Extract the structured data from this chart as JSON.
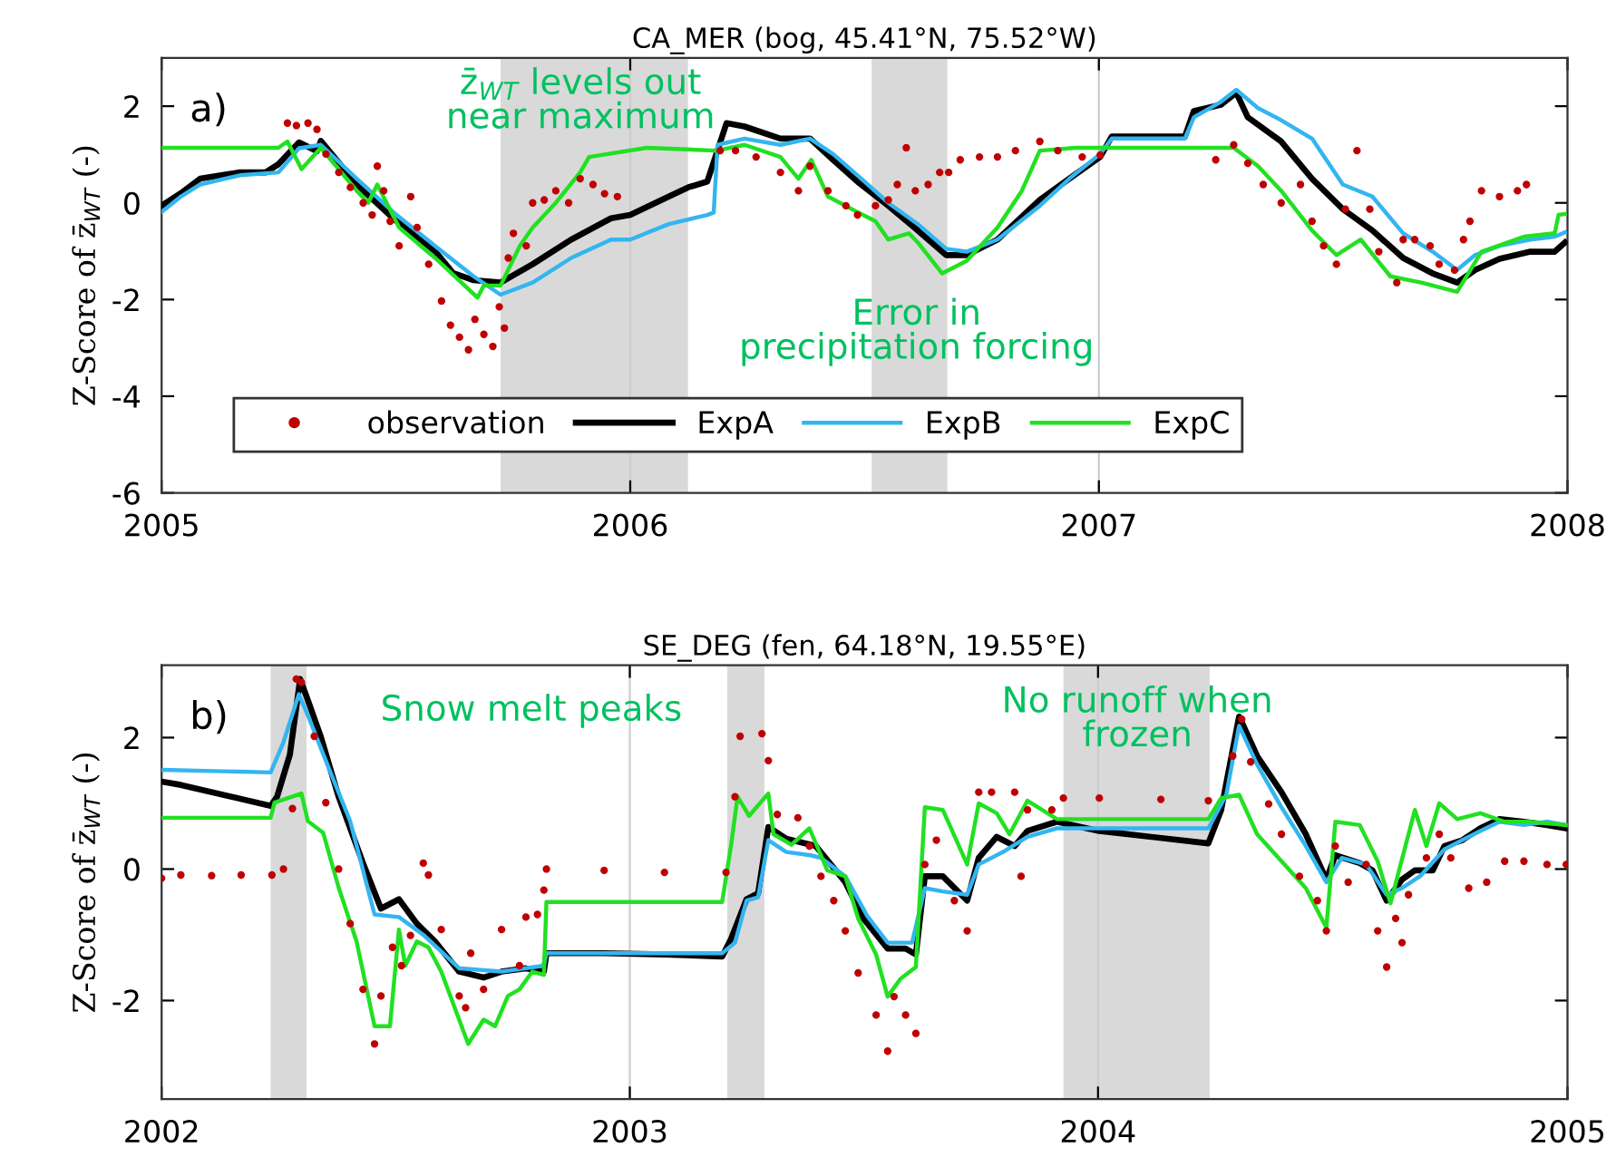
{
  "chart_data": [
    {
      "type": "line",
      "title": "CA_MER (bog, 45.41°N, 75.52°W)",
      "ylabel": "Z-Score of z̄$_{WT}$ (-)",
      "xlim": [
        "2005-01-01",
        "2008-01-01"
      ],
      "xticks": [
        {
          "value": "2005-01-01",
          "label": "2005"
        },
        {
          "value": "2006-01-01",
          "label": "2006"
        },
        {
          "value": "2007-01-01",
          "label": "2007"
        },
        {
          "value": "2008-01-01",
          "label": "2008"
        }
      ],
      "ylim": [
        -6,
        3
      ],
      "yticks": [
        -6,
        -4,
        -2,
        0,
        2
      ],
      "grid": "x",
      "legend": "bottom",
      "bands": [
        {
          "axis": "x",
          "from": "2005-09-22",
          "to": "2006-02-15",
          "color": "#d9d9d9"
        },
        {
          "axis": "x",
          "from": "2006-07-08",
          "to": "2006-09-05",
          "color": "#d9d9d9"
        }
      ],
      "annotations": [
        "a)",
        "z̄$_{WT}$ levels out\nnear maximum",
        "Error in\nprecipitation forcing"
      ],
      "series": [
        {
          "name": "observation",
          "type": "scatter",
          "marker": "circle",
          "color": "#c00000",
          "x": [
            "2005-04-09",
            "2005-04-16",
            "2005-04-25",
            "2005-05-02",
            "2005-05-09",
            "2005-05-19",
            "2005-05-28",
            "2005-06-07",
            "2005-06-14",
            "2005-06-18",
            "2005-06-23",
            "2005-06-28",
            "2005-07-05",
            "2005-07-14",
            "2005-07-19",
            "2005-07-28",
            "2005-08-07",
            "2005-08-14",
            "2005-08-21",
            "2005-08-28",
            "2005-09-02",
            "2005-09-09",
            "2005-09-16",
            "2005-09-21",
            "2005-09-25",
            "2005-09-28",
            "2005-10-02",
            "2005-10-12",
            "2005-10-17",
            "2005-10-26",
            "2005-11-04",
            "2005-11-14",
            "2005-11-23",
            "2005-12-03",
            "2005-12-12",
            "2005-12-22",
            "2006-03-12",
            "2006-03-24",
            "2006-04-09",
            "2006-04-28",
            "2006-05-12",
            "2006-05-21",
            "2006-06-04",
            "2006-06-18",
            "2006-06-27",
            "2006-07-11",
            "2006-07-21",
            "2006-07-28",
            "2006-08-04",
            "2006-08-11",
            "2006-08-21",
            "2006-08-30",
            "2006-09-06",
            "2006-09-15",
            "2006-09-30",
            "2006-10-14",
            "2006-10-28",
            "2006-11-16",
            "2006-11-30",
            "2006-12-19",
            "2007-01-02",
            "2007-04-02",
            "2007-04-16",
            "2007-04-27",
            "2007-05-09",
            "2007-05-23",
            "2007-06-07",
            "2007-06-16",
            "2007-06-25",
            "2007-07-05",
            "2007-07-12",
            "2007-07-21",
            "2007-07-31",
            "2007-08-07",
            "2007-08-21",
            "2007-08-26",
            "2007-09-04",
            "2007-09-16",
            "2007-09-23",
            "2007-10-05",
            "2007-10-12",
            "2007-10-17",
            "2007-10-26",
            "2007-11-09",
            "2007-11-23",
            "2007-11-30"
          ],
          "values": [
            1.65,
            1.6,
            1.65,
            1.52,
            1.01,
            0.63,
            0.32,
            0,
            -0.25,
            0.76,
            0.25,
            -0.38,
            -0.89,
            0.13,
            -0.51,
            -1.27,
            -2.03,
            -2.53,
            -2.78,
            -3.04,
            -2.41,
            -2.72,
            -2.97,
            -2.15,
            -2.59,
            -1.14,
            -0.63,
            -0.89,
            0,
            0.06,
            0.25,
            0,
            0.5,
            0.38,
            0.19,
            0.13,
            1.08,
            1.08,
            0.95,
            0.63,
            0.25,
            0.76,
            0.25,
            -0.06,
            -0.25,
            -0.06,
            0.06,
            0.38,
            1.14,
            0.25,
            0.38,
            0.63,
            0.63,
            0.89,
            0.95,
            0.95,
            1.08,
            1.27,
            1.08,
            0.95,
            0.99,
            0.89,
            1.2,
            0.82,
            0.38,
            0,
            0.38,
            -0.38,
            -0.89,
            -1.27,
            -0.13,
            1.08,
            -0.13,
            -1.01,
            -1.65,
            -0.76,
            -0.76,
            -0.89,
            -1.27,
            -1.39,
            -0.76,
            -0.38,
            0.25,
            0.13,
            0.25,
            0.38
          ]
        },
        {
          "name": "ExpA",
          "type": "line",
          "color": "#000000",
          "x": [
            "2005-01-01",
            "2005-01-16",
            "2005-01-31",
            "2005-03-03",
            "2005-03-23",
            "2005-04-02",
            "2005-04-18",
            "2005-05-02",
            "2005-05-05",
            "2005-06-02",
            "2005-07-03",
            "2005-08-02",
            "2005-08-16",
            "2005-09-01",
            "2005-09-22",
            "2005-10-17",
            "2005-11-16",
            "2005-12-17",
            "2006-01-01",
            "2006-01-31",
            "2006-02-15",
            "2006-03-02",
            "2006-03-17",
            "2006-03-31",
            "2006-04-28",
            "2006-05-21",
            "2006-06-08",
            "2006-06-27",
            "2006-07-21",
            "2006-08-13",
            "2006-09-04",
            "2006-09-20",
            "2006-10-14",
            "2006-11-16",
            "2006-12-09",
            "2007-01-02",
            "2007-01-11",
            "2007-03-09",
            "2007-03-16",
            "2007-04-06",
            "2007-04-18",
            "2007-04-27",
            "2007-05-23",
            "2007-06-16",
            "2007-07-10",
            "2007-08-02",
            "2007-08-26",
            "2007-09-18",
            "2007-10-07",
            "2007-10-21",
            "2007-11-09",
            "2007-12-03",
            "2007-12-22",
            "2007-12-30"
          ],
          "values": [
            -0.06,
            0.2,
            0.5,
            0.63,
            0.63,
            0.8,
            1.25,
            1.07,
            1.28,
            0.38,
            -0.38,
            -1.0,
            -1.45,
            -1.6,
            -1.65,
            -1.27,
            -0.76,
            -0.32,
            -0.25,
            0.13,
            0.32,
            0.44,
            1.65,
            1.58,
            1.33,
            1.33,
            0.89,
            0.44,
            -0.06,
            -0.57,
            -1.08,
            -1.08,
            -0.76,
            0.06,
            0.5,
            0.95,
            1.37,
            1.37,
            1.9,
            2.03,
            2.28,
            1.77,
            1.27,
            0.5,
            -0.13,
            -0.57,
            -1.14,
            -1.46,
            -1.65,
            -1.39,
            -1.16,
            -1.01,
            -1.01,
            -0.82
          ]
        },
        {
          "name": "ExpB",
          "type": "line",
          "color": "#33b5f0",
          "x": [
            "2005-01-01",
            "2005-01-16",
            "2005-01-31",
            "2005-03-03",
            "2005-04-02",
            "2005-04-18",
            "2005-05-05",
            "2005-06-02",
            "2005-07-03",
            "2005-08-02",
            "2005-09-01",
            "2005-09-22",
            "2005-10-17",
            "2005-11-16",
            "2005-12-17",
            "2006-01-01",
            "2006-01-31",
            "2006-03-02",
            "2006-03-07",
            "2006-03-10",
            "2006-03-31",
            "2006-04-28",
            "2006-05-21",
            "2006-06-08",
            "2006-06-27",
            "2006-07-21",
            "2006-08-13",
            "2006-09-04",
            "2006-09-20",
            "2006-10-14",
            "2006-11-16",
            "2006-12-09",
            "2007-01-02",
            "2007-01-11",
            "2007-03-09",
            "2007-03-16",
            "2007-04-06",
            "2007-04-18",
            "2007-05-05",
            "2007-05-23",
            "2007-06-16",
            "2007-07-10",
            "2007-08-02",
            "2007-08-26",
            "2007-09-18",
            "2007-10-07",
            "2007-10-21",
            "2007-11-09",
            "2007-12-03",
            "2007-12-22",
            "2007-12-30"
          ],
          "values": [
            -0.19,
            0.13,
            0.38,
            0.57,
            0.63,
            1.13,
            1.2,
            0.5,
            -0.25,
            -0.89,
            -1.52,
            -1.9,
            -1.65,
            -1.14,
            -0.76,
            -0.76,
            -0.44,
            -0.25,
            -0.2,
            1.2,
            1.33,
            1.2,
            1.33,
            1.01,
            0.57,
            0,
            -0.44,
            -0.95,
            -1.01,
            -0.76,
            -0.06,
            0.5,
            1.01,
            1.33,
            1.33,
            1.77,
            2.09,
            2.34,
            1.96,
            1.71,
            1.33,
            0.38,
            0.13,
            -0.63,
            -1.01,
            -1.39,
            -1.08,
            -0.89,
            -0.76,
            -0.7,
            -0.61
          ]
        },
        {
          "name": "ExpC",
          "type": "line",
          "color": "#22e022",
          "x": [
            "2005-01-01",
            "2005-03-04",
            "2005-04-02",
            "2005-04-09",
            "2005-04-20",
            "2005-05-05",
            "2005-06-02",
            "2005-06-11",
            "2005-06-18",
            "2005-07-05",
            "2005-08-02",
            "2005-09-04",
            "2005-09-09",
            "2005-09-22",
            "2005-10-07",
            "2005-10-17",
            "2005-11-04",
            "2005-11-23",
            "2005-11-30",
            "2006-01-14",
            "2006-03-09",
            "2006-03-31",
            "2006-04-28",
            "2006-05-12",
            "2006-05-22",
            "2006-06-04",
            "2006-06-27",
            "2006-07-11",
            "2006-07-21",
            "2006-08-06",
            "2006-08-13",
            "2006-09-01",
            "2006-09-20",
            "2006-10-14",
            "2006-11-02",
            "2006-11-16",
            "2006-12-14",
            "2007-01-02",
            "2007-03-09",
            "2007-04-16",
            "2007-05-05",
            "2007-05-23",
            "2007-06-16",
            "2007-07-05",
            "2007-07-24",
            "2007-08-16",
            "2007-09-09",
            "2007-10-07",
            "2007-10-26",
            "2007-11-28",
            "2007-12-22",
            "2007-12-25",
            "2007-12-30"
          ],
          "values": [
            1.14,
            1.14,
            1.14,
            1.27,
            0.7,
            1.14,
            0.25,
            0,
            0.38,
            -0.51,
            -1.14,
            -1.96,
            -1.71,
            -1.71,
            -0.89,
            -0.51,
            0,
            0.63,
            0.95,
            1.14,
            1.08,
            1.2,
            0.95,
            0.5,
            0.89,
            0.13,
            -0.19,
            -0.38,
            -0.76,
            -0.63,
            -0.82,
            -1.46,
            -1.2,
            -0.51,
            0.25,
            1.08,
            1.14,
            1.14,
            1.14,
            1.14,
            0.76,
            0.25,
            -0.57,
            -1.08,
            -0.76,
            -1.52,
            -1.65,
            -1.84,
            -1.01,
            -0.7,
            -0.63,
            -0.25,
            -0.23
          ]
        }
      ]
    },
    {
      "type": "line",
      "title": "SE_DEG (fen, 64.18°N, 19.55°E)",
      "ylabel": "Z-Score of z̄$_{WT}$ (-)",
      "xlim": [
        "2002-01-01",
        "2005-01-01"
      ],
      "xticks": [
        {
          "value": "2002-01-01",
          "label": "2002"
        },
        {
          "value": "2003-01-01",
          "label": "2003"
        },
        {
          "value": "2004-01-01",
          "label": "2004"
        },
        {
          "value": "2005-01-01",
          "label": "2005"
        }
      ],
      "ylim": [
        -3.5,
        3.1
      ],
      "yticks": [
        -2,
        0,
        2
      ],
      "grid": "x",
      "bands": [
        {
          "axis": "x",
          "from": "2002-03-27",
          "to": "2002-04-24",
          "color": "#d9d9d9"
        },
        {
          "axis": "x",
          "from": "2003-03-18",
          "to": "2003-04-16",
          "color": "#d9d9d9"
        },
        {
          "axis": "x",
          "from": "2003-12-05",
          "to": "2004-03-28",
          "color": "#d9d9d9"
        }
      ],
      "annotations": [
        "b)",
        "Snow melt peaks",
        "No runoff when\nfrozen"
      ],
      "series": [
        {
          "type": "scatter",
          "marker": "circle",
          "color": "#c00000",
          "x": [
            "2002-01-01",
            "2002-01-16",
            "2002-02-09",
            "2002-03-04",
            "2002-03-28",
            "2002-04-06",
            "2002-04-13",
            "2002-04-16",
            "2002-04-20",
            "2002-04-30",
            "2002-05-09",
            "2002-05-19",
            "2002-05-28",
            "2002-06-07",
            "2002-06-16",
            "2002-06-21",
            "2002-06-30",
            "2002-07-07",
            "2002-07-14",
            "2002-07-24",
            "2002-07-28",
            "2002-08-07",
            "2002-08-21",
            "2002-08-26",
            "2002-08-30",
            "2002-09-09",
            "2002-09-23",
            "2002-10-07",
            "2002-10-12",
            "2002-10-21",
            "2002-10-26",
            "2002-10-28",
            "2002-12-12",
            "2003-01-28",
            "2003-03-17",
            "2003-03-24",
            "2003-03-28",
            "2003-04-14",
            "2003-04-19",
            "2003-04-26",
            "2003-05-12",
            "2003-05-21",
            "2003-05-30",
            "2003-06-09",
            "2003-06-18",
            "2003-06-28",
            "2003-07-12",
            "2003-07-21",
            "2003-07-26",
            "2003-08-04",
            "2003-08-12",
            "2003-08-19",
            "2003-08-28",
            "2003-09-11",
            "2003-09-21",
            "2003-09-30",
            "2003-10-10",
            "2003-10-28",
            "2003-11-02",
            "2003-11-07",
            "2003-11-26",
            "2003-12-05",
            "2004-01-02",
            "2004-02-19",
            "2004-03-27",
            "2004-04-15",
            "2004-04-22",
            "2004-04-29",
            "2004-05-13",
            "2004-05-23",
            "2004-06-06",
            "2004-06-20",
            "2004-06-27",
            "2004-07-04",
            "2004-07-14",
            "2004-07-28",
            "2004-08-06",
            "2004-08-13",
            "2004-08-20",
            "2004-08-25",
            "2004-08-30",
            "2004-09-13",
            "2004-09-23",
            "2004-10-02",
            "2004-10-16",
            "2004-10-30",
            "2004-11-13",
            "2004-11-28",
            "2004-12-16",
            "2004-12-31"
          ],
          "values": [
            -0.14,
            -0.09,
            -0.1,
            -0.09,
            -0.09,
            0,
            0.92,
            2.89,
            2.84,
            2.02,
            1.01,
            0,
            -0.83,
            -1.83,
            -2.66,
            -1.93,
            -1.19,
            -1.47,
            -1.01,
            0.09,
            -0.09,
            -0.92,
            -1.93,
            -2.11,
            -1.28,
            -1.83,
            -0.92,
            -1.47,
            -0.73,
            -0.69,
            -0.32,
            0,
            -0.02,
            -0.05,
            -0.05,
            1.1,
            2.02,
            2.06,
            1.65,
            0.83,
            0.78,
            0.35,
            -0.11,
            -0.48,
            -0.94,
            -1.58,
            -2.22,
            -2.77,
            -1.94,
            -2.22,
            -2.5,
            0.07,
            0.44,
            -0.48,
            -0.94,
            1.17,
            1.17,
            1.17,
            -0.11,
            0.9,
            0.9,
            1.08,
            1.08,
            1.06,
            1.04,
            1.72,
            2.28,
            1.63,
            0.99,
            0.53,
            -0.11,
            -0.48,
            -0.94,
            0.35,
            -0.2,
            0.07,
            -0.94,
            -1.49,
            -0.75,
            -1.12,
            -0.39,
            0.17,
            0.53,
            0.17,
            -0.29,
            -0.2,
            0.12,
            0.12,
            0.07,
            0.07
          ]
        },
        {
          "type": "line",
          "color": "#000000",
          "x": [
            "2002-01-01",
            "2002-01-16",
            "2002-03-27",
            "2002-04-01",
            "2002-04-11",
            "2002-04-19",
            "2002-04-25",
            "2002-05-05",
            "2002-05-19",
            "2002-06-07",
            "2002-06-21",
            "2002-07-05",
            "2002-07-19",
            "2002-08-02",
            "2002-08-21",
            "2002-09-09",
            "2002-09-23",
            "2002-10-12",
            "2002-10-26",
            "2002-10-28",
            "2002-12-12",
            "2003-01-28",
            "2003-03-14",
            "2003-03-21",
            "2003-04-02",
            "2003-04-11",
            "2003-04-19",
            "2003-05-03",
            "2003-05-26",
            "2003-06-18",
            "2003-07-02",
            "2003-07-21",
            "2003-08-04",
            "2003-08-12",
            "2003-08-19",
            "2003-09-02",
            "2003-09-21",
            "2003-09-30",
            "2003-10-14",
            "2003-10-28",
            "2003-11-07",
            "2003-11-30",
            "2004-01-02",
            "2004-03-27",
            "2004-04-06",
            "2004-04-20",
            "2004-05-04",
            "2004-05-23",
            "2004-06-11",
            "2004-06-27",
            "2004-07-04",
            "2004-07-23",
            "2004-08-02",
            "2004-08-13",
            "2004-08-25",
            "2004-09-04",
            "2004-09-18",
            "2004-09-27",
            "2004-10-11",
            "2004-10-25",
            "2004-11-09",
            "2004-11-28",
            "2004-12-16",
            "2004-12-31"
          ],
          "values": [
            1.33,
            1.28,
            0.96,
            1.1,
            1.74,
            2.89,
            2.57,
            2.02,
            1.1,
            0.09,
            -0.6,
            -0.46,
            -0.83,
            -1.1,
            -1.56,
            -1.65,
            -1.56,
            -1.51,
            -1.56,
            -1.28,
            -1.28,
            -1.3,
            -1.33,
            -1.06,
            -0.46,
            -0.37,
            0.64,
            0.46,
            0.35,
            -0.2,
            -0.75,
            -1.21,
            -1.21,
            -1.3,
            -0.11,
            -0.11,
            -0.48,
            0.17,
            0.49,
            0.35,
            0.58,
            0.72,
            0.58,
            0.39,
            0.9,
            2.32,
            1.72,
            1.17,
            0.53,
            -0.16,
            0.21,
            0.09,
            -0.02,
            -0.48,
            -0.16,
            -0.02,
            -0.02,
            0.35,
            0.44,
            0.62,
            0.76,
            0.72,
            0.67,
            0.62
          ]
        },
        {
          "type": "line",
          "color": "#33b5f0",
          "x": [
            "2002-01-01",
            "2002-03-27",
            "2002-04-06",
            "2002-04-18",
            "2002-04-25",
            "2002-05-09",
            "2002-05-28",
            "2002-06-16",
            "2002-07-05",
            "2002-07-24",
            "2002-08-21",
            "2002-09-23",
            "2002-10-26",
            "2002-10-28",
            "2003-03-14",
            "2003-03-24",
            "2003-04-02",
            "2003-04-11",
            "2003-04-19",
            "2003-05-03",
            "2003-05-22",
            "2003-05-30",
            "2003-06-18",
            "2003-07-05",
            "2003-07-21",
            "2003-08-09",
            "2003-08-19",
            "2003-09-02",
            "2003-09-21",
            "2003-09-30",
            "2003-10-19",
            "2003-11-07",
            "2003-11-30",
            "2004-01-02",
            "2004-03-27",
            "2004-04-10",
            "2004-04-20",
            "2004-05-04",
            "2004-05-23",
            "2004-06-11",
            "2004-06-27",
            "2004-07-09",
            "2004-07-28",
            "2004-08-13",
            "2004-08-25",
            "2004-09-08",
            "2004-09-27",
            "2004-10-11",
            "2004-10-25",
            "2004-11-09",
            "2004-11-28",
            "2004-12-16",
            "2004-12-31"
          ],
          "values": [
            1.51,
            1.47,
            1.93,
            2.66,
            2.34,
            1.65,
            0.73,
            -0.69,
            -0.73,
            -1.0,
            -1.51,
            -1.56,
            -1.47,
            -1.28,
            -1.28,
            -1.12,
            -0.48,
            -0.43,
            0.44,
            0.26,
            0.21,
            0.17,
            -0.11,
            -0.71,
            -1.12,
            -1.12,
            -0.29,
            -0.34,
            -0.39,
            0.07,
            0.26,
            0.49,
            0.62,
            0.62,
            0.62,
            1.13,
            2.18,
            1.59,
            0.94,
            0.35,
            -0.2,
            0.17,
            0.07,
            -0.39,
            -0.29,
            -0.11,
            0.3,
            0.44,
            0.58,
            0.72,
            0.67,
            0.72,
            0.67
          ]
        },
        {
          "type": "line",
          "color": "#22e022",
          "x": [
            "2002-01-01",
            "2002-03-27",
            "2002-03-30",
            "2002-04-20",
            "2002-04-25",
            "2002-05-07",
            "2002-05-19",
            "2002-06-02",
            "2002-06-16",
            "2002-06-28",
            "2002-07-05",
            "2002-07-10",
            "2002-07-19",
            "2002-07-28",
            "2002-08-07",
            "2002-08-28",
            "2002-09-09",
            "2002-09-18",
            "2002-09-28",
            "2002-10-07",
            "2002-10-17",
            "2002-10-26",
            "2002-10-28",
            "2003-03-14",
            "2003-03-21",
            "2003-03-26",
            "2003-04-04",
            "2003-04-19",
            "2003-04-23",
            "2003-05-07",
            "2003-05-21",
            "2003-06-04",
            "2003-06-18",
            "2003-06-28",
            "2003-07-12",
            "2003-07-21",
            "2003-07-31",
            "2003-08-12",
            "2003-08-19",
            "2003-09-02",
            "2003-09-21",
            "2003-09-30",
            "2003-10-14",
            "2003-10-24",
            "2003-11-07",
            "2003-11-30",
            "2004-03-27",
            "2004-04-06",
            "2004-04-20",
            "2004-05-04",
            "2004-05-23",
            "2004-06-11",
            "2004-06-27",
            "2004-07-04",
            "2004-07-23",
            "2004-08-06",
            "2004-08-16",
            "2004-09-04",
            "2004-09-13",
            "2004-09-23",
            "2004-10-07",
            "2004-10-25",
            "2004-11-13",
            "2004-12-02",
            "2004-12-31"
          ],
          "values": [
            0.78,
            0.78,
            1.01,
            1.15,
            0.73,
            0.55,
            -0.28,
            -1.1,
            -2.39,
            -2.39,
            -0.92,
            -1.47,
            -1.1,
            -1.19,
            -1.56,
            -2.66,
            -2.29,
            -2.39,
            -1.93,
            -1.83,
            -1.56,
            -1.61,
            -0.5,
            -0.5,
            0.37,
            1.1,
            0.81,
            1.15,
            0.53,
            0.37,
            0.62,
            -0.02,
            -0.11,
            -0.75,
            -1.3,
            -1.94,
            -1.67,
            -1.49,
            0.94,
            0.9,
            0.07,
            1.0,
            0.85,
            0.53,
            1.04,
            0.76,
            0.76,
            1.08,
            1.13,
            0.53,
            0.12,
            -0.29,
            -0.89,
            0.72,
            0.67,
            0.12,
            -0.52,
            0.9,
            0.35,
            1.0,
            0.76,
            0.85,
            0.72,
            0.72,
            0.67
          ]
        }
      ]
    }
  ]
}
